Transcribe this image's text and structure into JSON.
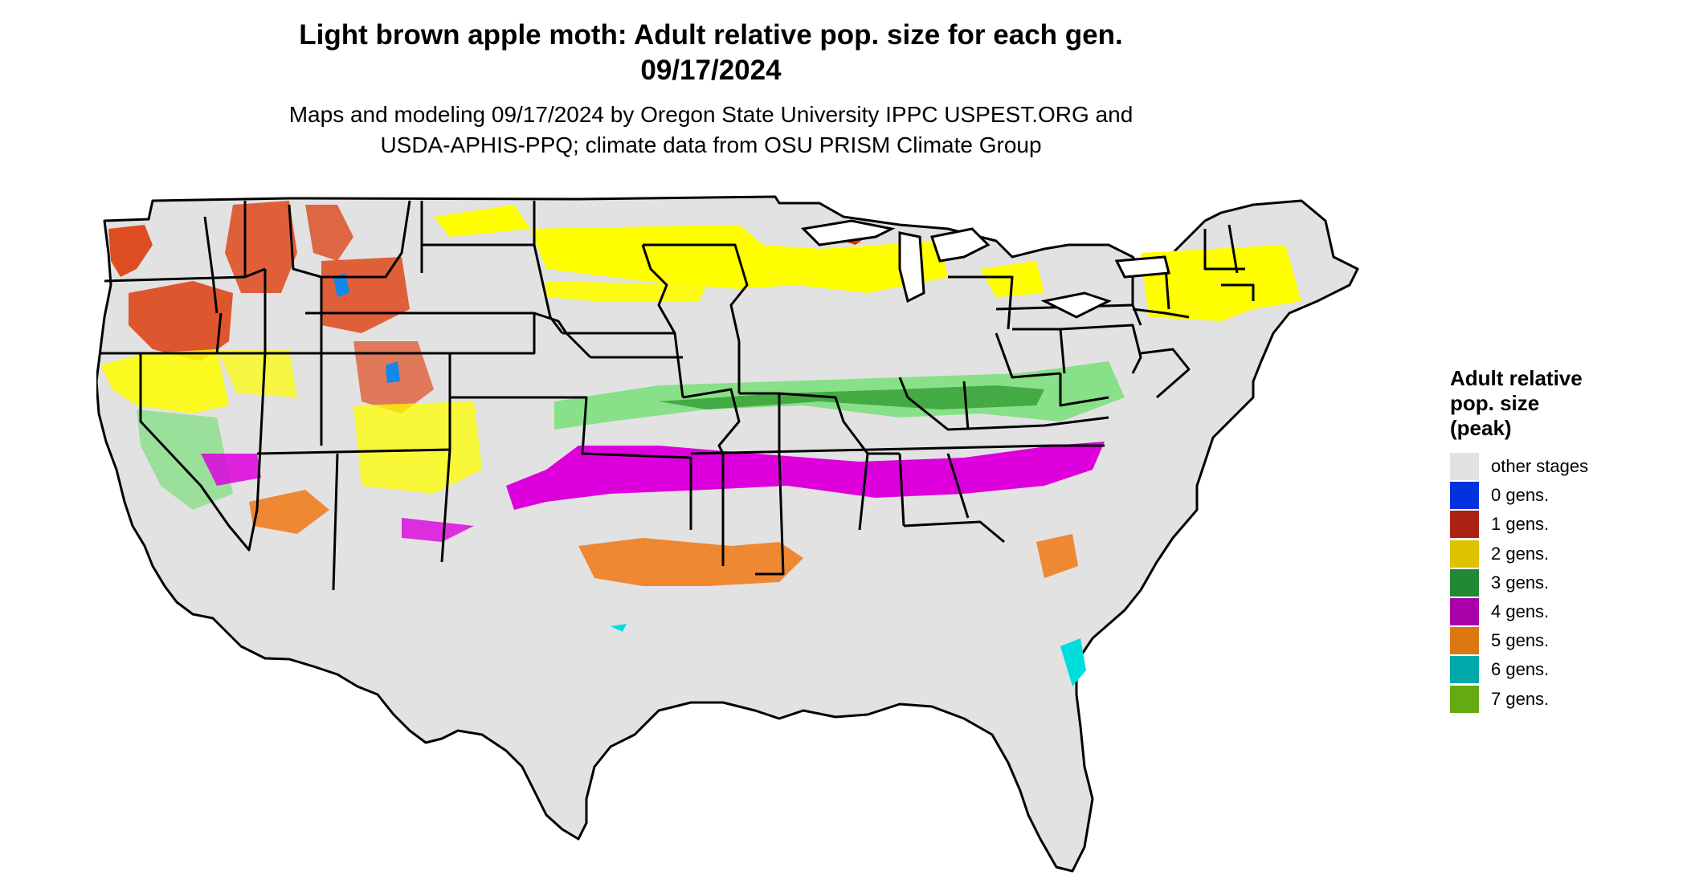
{
  "title": "Light brown apple moth: Adult relative pop. size for each gen.",
  "date": "09/17/2024",
  "subtitle_line1": "Maps and modeling 09/17/2024 by Oregon State University IPPC USPEST.ORG and",
  "subtitle_line2": "USDA-APHIS-PPQ; climate data from OSU PRISM Climate Group",
  "legend": {
    "title_line1": "Adult relative",
    "title_line2": "pop. size",
    "title_line3": "(peak)",
    "items": [
      {
        "label": "other stages",
        "color": "#e2e2e2"
      },
      {
        "label": "0 gens.",
        "color": "#0033dd"
      },
      {
        "label": "1 gens.",
        "color": "#aa2211"
      },
      {
        "label": "2 gens.",
        "color": "#ddc200"
      },
      {
        "label": "3 gens.",
        "color": "#228833"
      },
      {
        "label": "4 gens.",
        "color": "#aa00aa"
      },
      {
        "label": "5 gens.",
        "color": "#dd7711"
      },
      {
        "label": "6 gens.",
        "color": "#00aaaa"
      },
      {
        "label": "7 gens.",
        "color": "#66aa11"
      }
    ]
  },
  "map_colors": {
    "background": "#e2e2e2",
    "gen1": "#dd3300",
    "gen2": "#ffff00",
    "gen3_light": "#88e088",
    "gen3_dark": "#44aa44",
    "gen4": "#dd00dd",
    "gen5": "#ee8833",
    "gen6": "#00dddd",
    "gen0": "#1188ee",
    "border": "#000000"
  }
}
